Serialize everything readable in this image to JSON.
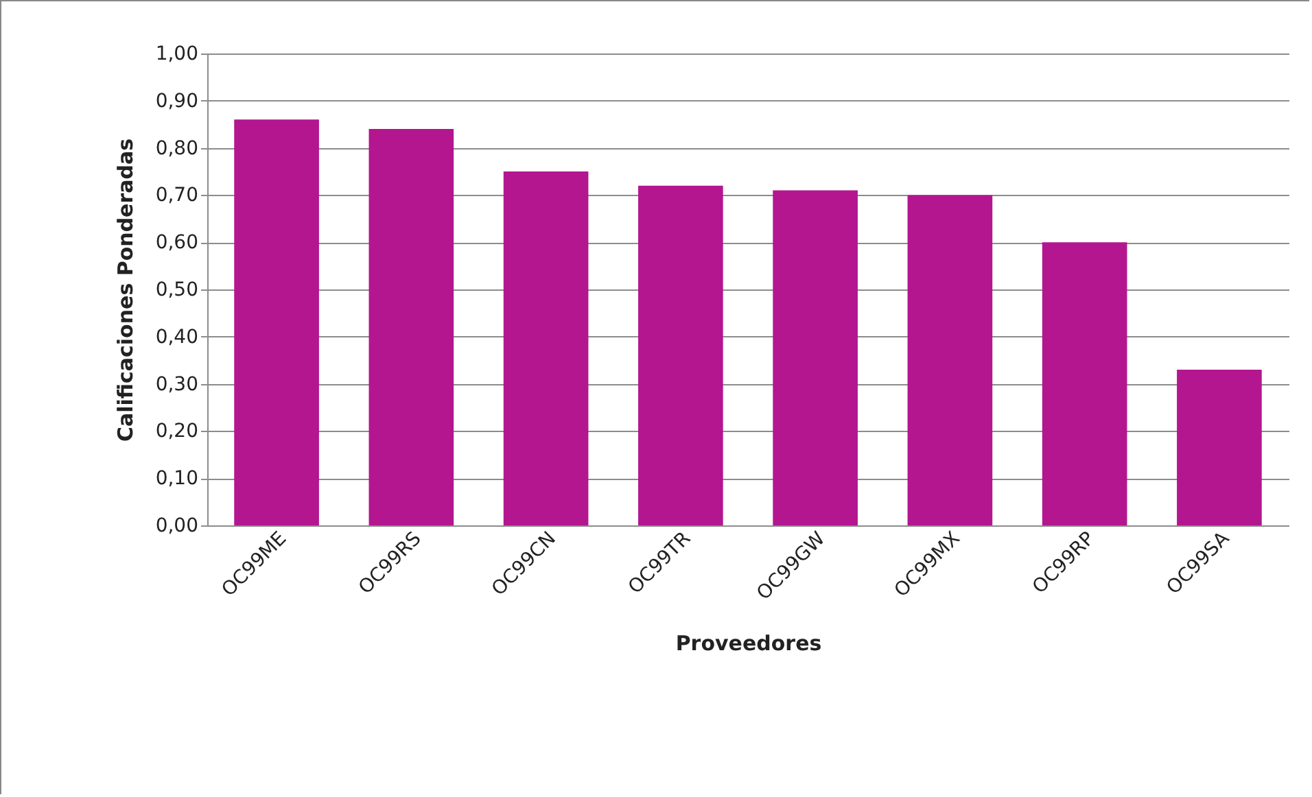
{
  "chart_data": {
    "type": "bar",
    "xlabel": "Proveedores",
    "ylabel": "Calificaciones  Ponderadas",
    "categories": [
      "OC99ME",
      "OC99RS",
      "OC99CN",
      "OC99TR",
      "OC99GW",
      "OC99MX",
      "OC99RP",
      "OC99SA"
    ],
    "values": [
      0.86,
      0.84,
      0.75,
      0.72,
      0.71,
      0.7,
      0.6,
      0.33
    ],
    "color": "#b3168f",
    "ylim": [
      0,
      1
    ],
    "yticks": [
      {
        "value": 0,
        "label": "0,00"
      },
      {
        "value": 0.1,
        "label": "0,10"
      },
      {
        "value": 0.2,
        "label": "0,20"
      },
      {
        "value": 0.3,
        "label": "0,30"
      },
      {
        "value": 0.4,
        "label": "0,40"
      },
      {
        "value": 0.5,
        "label": "0,50"
      },
      {
        "value": 0.6,
        "label": "0,60"
      },
      {
        "value": 0.7,
        "label": "0,70"
      },
      {
        "value": 0.8,
        "label": "0,80"
      },
      {
        "value": 0.9,
        "label": "0,90"
      },
      {
        "value": 1,
        "label": "1,00"
      }
    ],
    "grid": true
  }
}
